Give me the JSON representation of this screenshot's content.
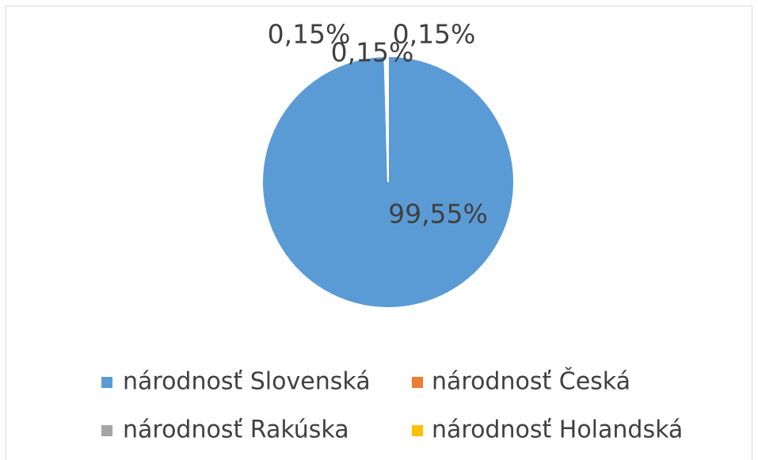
{
  "chart_data": {
    "type": "pie",
    "categories": [
      "národnosť Slovenská",
      "národnosť Česká",
      "národnosť Rakúska",
      "národnosť Holandská"
    ],
    "values": [
      99.55,
      0.15,
      0.15,
      0.15
    ],
    "value_labels": [
      "99,55%",
      "0,15%",
      "0,15%",
      "0,15%"
    ],
    "colors": [
      "#5b9bd5",
      "#ed7d31",
      "#a5a5a5",
      "#ffc000"
    ],
    "legend": "bottom"
  }
}
